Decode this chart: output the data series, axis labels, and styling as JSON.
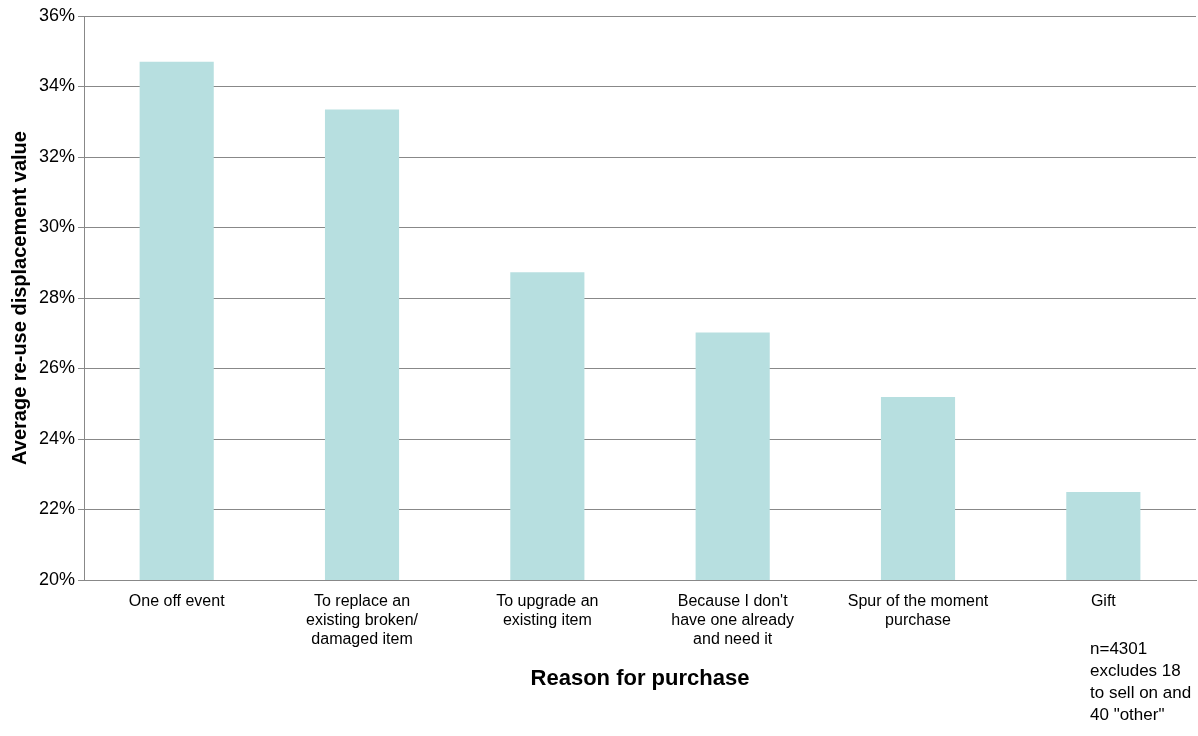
{
  "chart_data": {
    "type": "bar",
    "xlabel": "Reason for purchase",
    "ylabel": "Average re-use displacement value",
    "categories": [
      "One off event",
      "To replace an existing broken/ damaged item",
      "To upgrade an existing item",
      "Because I don't have one already and need it",
      "Spur of the moment purchase",
      "Gift"
    ],
    "values": [
      34.7,
      33.35,
      28.73,
      27.02,
      25.19,
      22.5
    ],
    "color": "#b7dfe0",
    "ylim": [
      20,
      36
    ],
    "yticks": [
      {
        "value": 20,
        "label": "20%"
      },
      {
        "value": 22,
        "label": "22%"
      },
      {
        "value": 24,
        "label": "24%"
      },
      {
        "value": 26,
        "label": "26%"
      },
      {
        "value": 28,
        "label": "28%"
      },
      {
        "value": 30,
        "label": "30%"
      },
      {
        "value": 32,
        "label": "32%"
      },
      {
        "value": 34,
        "label": "34%"
      },
      {
        "value": 36,
        "label": "36%"
      }
    ],
    "grid": "y",
    "annotations": [
      "n=4301 excludes 18 to sell on and 40 \"other\""
    ]
  }
}
